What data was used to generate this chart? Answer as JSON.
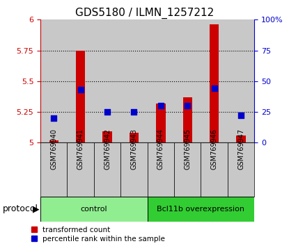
{
  "title": "GDS5180 / ILMN_1257212",
  "samples": [
    "GSM769940",
    "GSM769941",
    "GSM769942",
    "GSM769943",
    "GSM769944",
    "GSM769945",
    "GSM769946",
    "GSM769947"
  ],
  "transformed_count": [
    5.02,
    5.75,
    5.09,
    5.08,
    5.32,
    5.37,
    5.96,
    5.06
  ],
  "percentile_rank": [
    20,
    43,
    25,
    25,
    30,
    30,
    44,
    22
  ],
  "ylim_left": [
    5.0,
    6.0
  ],
  "ylim_right": [
    0,
    100
  ],
  "yticks_left": [
    5.0,
    5.25,
    5.5,
    5.75,
    6.0
  ],
  "yticks_right": [
    0,
    25,
    50,
    75,
    100
  ],
  "ytick_labels_left": [
    "5",
    "5.25",
    "5.5",
    "5.75",
    "6"
  ],
  "ytick_labels_right": [
    "0",
    "25",
    "50",
    "75",
    "100%"
  ],
  "groups": [
    {
      "label": "control",
      "indices": [
        0,
        1,
        2,
        3
      ],
      "color": "#90EE90"
    },
    {
      "label": "Bcl11b overexpression",
      "indices": [
        4,
        5,
        6,
        7
      ],
      "color": "#32CD32"
    }
  ],
  "protocol_label": "protocol",
  "bar_color": "#CC0000",
  "dot_color": "#0000CC",
  "col_bg_color": "#C8C8C8",
  "plot_bg_color": "#FFFFFF",
  "left_tick_color": "#CC0000",
  "right_tick_color": "#0000CC",
  "bar_width": 0.35,
  "dot_size": 30,
  "title_fontsize": 11,
  "tick_fontsize": 8,
  "label_fontsize": 7,
  "legend_fontsize": 7.5,
  "group_fontsize": 8,
  "protocol_fontsize": 9
}
